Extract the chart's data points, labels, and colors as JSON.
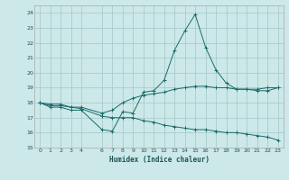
{
  "xlabel": "Humidex (Indice chaleur)",
  "xlim": [
    -0.5,
    23.5
  ],
  "ylim": [
    15,
    24.5
  ],
  "yticks": [
    15,
    16,
    17,
    18,
    19,
    20,
    21,
    22,
    23,
    24
  ],
  "xticks": [
    0,
    1,
    2,
    3,
    4,
    6,
    7,
    8,
    9,
    10,
    11,
    12,
    13,
    14,
    15,
    16,
    17,
    18,
    19,
    20,
    21,
    22,
    23
  ],
  "background_color": "#cce8e8",
  "grid_color": "#aacccc",
  "line_color": "#1a6b6b",
  "line1_x": [
    0,
    1,
    2,
    3,
    4,
    6,
    7,
    8,
    9,
    10,
    11,
    12,
    13,
    14,
    15,
    16,
    17,
    18,
    19,
    20,
    21,
    22,
    23
  ],
  "line1_y": [
    18.0,
    17.7,
    17.7,
    17.5,
    17.5,
    16.2,
    16.1,
    17.4,
    17.3,
    18.7,
    18.8,
    19.5,
    21.5,
    22.8,
    23.9,
    21.7,
    20.2,
    19.3,
    18.9,
    18.9,
    18.9,
    19.0,
    19.0
  ],
  "line2_x": [
    0,
    1,
    2,
    3,
    4,
    6,
    7,
    8,
    9,
    10,
    11,
    12,
    13,
    14,
    15,
    16,
    17,
    18,
    19,
    20,
    21,
    22,
    23
  ],
  "line2_y": [
    18.0,
    17.9,
    17.9,
    17.7,
    17.7,
    17.3,
    17.5,
    18.0,
    18.3,
    18.5,
    18.6,
    18.7,
    18.9,
    19.0,
    19.1,
    19.1,
    19.0,
    19.0,
    18.9,
    18.9,
    18.8,
    18.8,
    19.0
  ],
  "line3_x": [
    0,
    1,
    2,
    3,
    4,
    6,
    7,
    8,
    9,
    10,
    11,
    12,
    13,
    14,
    15,
    16,
    17,
    18,
    19,
    20,
    21,
    22,
    23
  ],
  "line3_y": [
    18.0,
    17.8,
    17.8,
    17.7,
    17.6,
    17.1,
    17.0,
    17.0,
    17.0,
    16.8,
    16.7,
    16.5,
    16.4,
    16.3,
    16.2,
    16.2,
    16.1,
    16.0,
    16.0,
    15.9,
    15.8,
    15.7,
    15.5
  ]
}
